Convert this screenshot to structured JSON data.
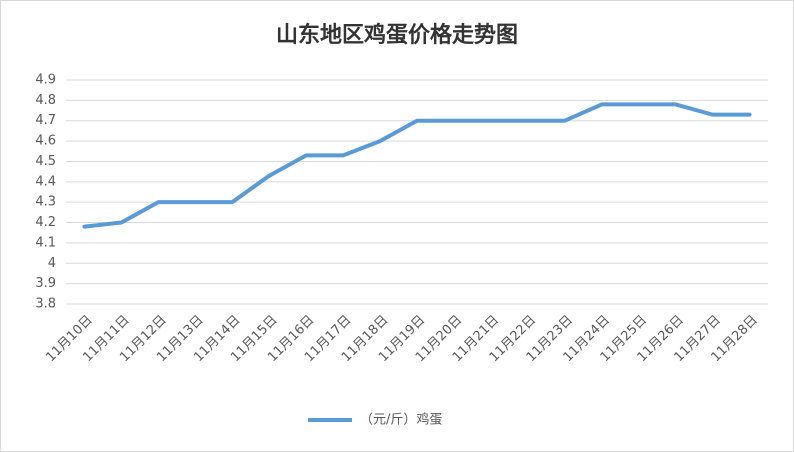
{
  "chart_data": {
    "type": "line",
    "title": "山东地区鸡蛋价格走势图",
    "categories": [
      "11月10日",
      "11月11日",
      "11月12日",
      "11月13日",
      "11月14日",
      "11月15日",
      "11月16日",
      "11月17日",
      "11月18日",
      "11月19日",
      "11月20日",
      "11月21日",
      "11月22日",
      "11月23日",
      "11月24日",
      "11月25日",
      "11月26日",
      "11月27日",
      "11月28日"
    ],
    "series": [
      {
        "name": "（元/斤）鸡蛋",
        "color": "#5b9bd5",
        "values": [
          4.18,
          4.2,
          4.3,
          4.3,
          4.3,
          4.43,
          4.53,
          4.53,
          4.6,
          4.7,
          4.7,
          4.7,
          4.7,
          4.7,
          4.78,
          4.78,
          4.78,
          4.73,
          4.73
        ]
      }
    ],
    "ylim": [
      3.8,
      4.9
    ],
    "yticks": [
      3.8,
      3.9,
      4,
      4.1,
      4.2,
      4.3,
      4.4,
      4.5,
      4.6,
      4.7,
      4.8,
      4.9
    ],
    "grid": true,
    "legend": "bottom"
  }
}
